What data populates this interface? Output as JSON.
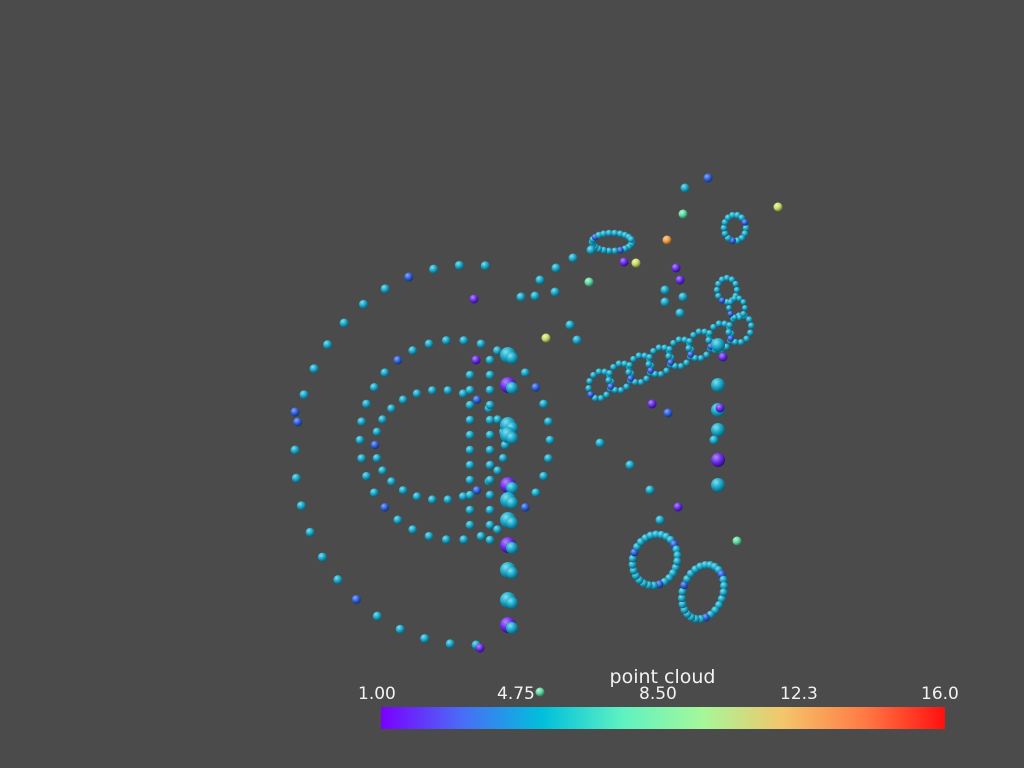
{
  "colorbar": {
    "title": "point cloud",
    "ticks": [
      "1.00",
      "4.75",
      "8.50",
      "12.3",
      "16.0"
    ],
    "range": [
      1.0,
      16.0
    ],
    "colormap": "rainbow",
    "stops": [
      "#7a00ff",
      "#4a6cf6",
      "#00bfdc",
      "#5ef2c2",
      "#a6f79a",
      "#f4c56a",
      "#ff7a45",
      "#ff1010"
    ]
  },
  "scene": {
    "background": "#4b4b4b",
    "points_color_dominant": "#1aa4c4"
  }
}
